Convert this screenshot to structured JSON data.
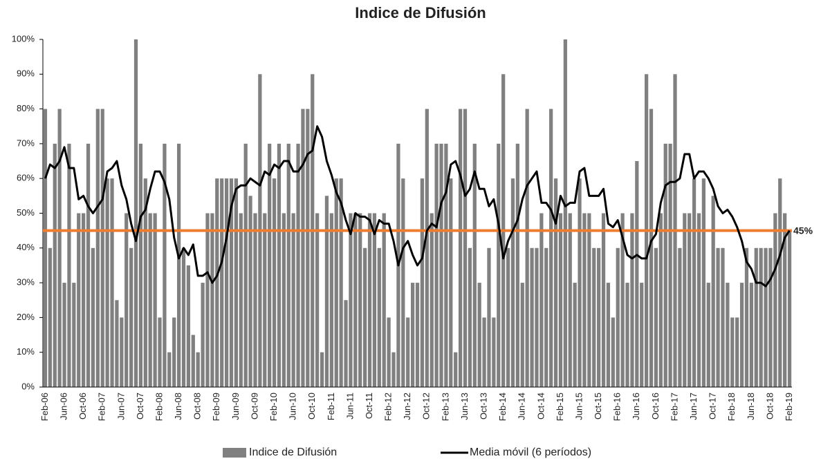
{
  "chart_data": {
    "type": "bar_line",
    "title": "Indice de Difusión",
    "categories": [
      "Feb-06",
      null,
      null,
      null,
      "Jun-06",
      null,
      null,
      null,
      "Oct-06",
      null,
      null,
      null,
      "Feb-07",
      null,
      null,
      null,
      "Jun-07",
      null,
      null,
      null,
      "Oct-07",
      null,
      null,
      null,
      "Feb-08",
      null,
      null,
      null,
      "Jun-08",
      null,
      null,
      null,
      "Oct-08",
      null,
      null,
      null,
      "Feb-09",
      null,
      null,
      null,
      "Jun-09",
      null,
      null,
      null,
      "Oct-09",
      null,
      null,
      null,
      "Feb-10",
      null,
      null,
      null,
      "Jun-10",
      null,
      null,
      null,
      "Oct-10",
      null,
      null,
      null,
      "Feb-11",
      null,
      null,
      null,
      "Jun-11",
      null,
      null,
      null,
      "Oct-11",
      null,
      null,
      null,
      "Feb-12",
      null,
      null,
      null,
      "Jun-12",
      null,
      null,
      null,
      "Oct-12",
      null,
      null,
      null,
      "Feb-13",
      null,
      null,
      null,
      "Jun-13",
      null,
      null,
      null,
      "Oct-13",
      null,
      null,
      null,
      "Feb-14",
      null,
      null,
      null,
      "Jun-14",
      null,
      null,
      null,
      "Oct-14",
      null,
      null,
      null,
      "Feb-15",
      null,
      null,
      null,
      "Jun-15",
      null,
      null,
      null,
      "Oct-15",
      null,
      null,
      null,
      "Feb-16",
      null,
      null,
      null,
      "Jun-16",
      null,
      null,
      null,
      "Oct-16",
      null,
      null,
      null,
      "Feb-17",
      null,
      null,
      null,
      "Jun-17",
      null,
      null,
      null,
      "Oct-17",
      null,
      null,
      null,
      "Feb-18",
      null,
      null,
      null,
      "Jun-18",
      null,
      null,
      null,
      "Oct-18",
      null,
      null,
      null,
      "Feb-19"
    ],
    "series": [
      {
        "name": "Indice de Difusión",
        "type": "bar",
        "color": "#808080",
        "values": [
          80,
          40,
          70,
          80,
          30,
          70,
          30,
          50,
          50,
          70,
          40,
          80,
          80,
          60,
          60,
          25,
          20,
          50,
          40,
          100,
          70,
          60,
          50,
          50,
          20,
          70,
          10,
          20,
          70,
          40,
          35,
          15,
          10,
          30,
          50,
          50,
          60,
          60,
          60,
          60,
          60,
          50,
          70,
          55,
          50,
          90,
          50,
          70,
          60,
          70,
          50,
          70,
          50,
          70,
          80,
          80,
          90,
          50,
          10,
          55,
          50,
          60,
          60,
          25,
          50,
          50,
          50,
          40,
          50,
          50,
          40,
          50,
          20,
          10,
          70,
          60,
          20,
          30,
          30,
          60,
          80,
          50,
          70,
          70,
          70,
          60,
          10,
          80,
          80,
          40,
          70,
          30,
          20,
          40,
          20,
          70,
          90,
          40,
          60,
          70,
          30,
          80,
          40,
          40,
          50,
          40,
          80,
          60,
          50,
          100,
          50,
          30,
          60,
          50,
          50,
          40,
          40,
          50,
          30,
          20,
          40,
          50,
          30,
          50,
          65,
          30,
          90,
          80,
          40,
          50,
          70,
          70,
          90,
          40,
          50,
          50,
          60,
          50,
          60,
          30,
          55,
          40,
          40,
          30,
          20,
          20,
          30,
          40,
          30,
          40,
          40,
          40,
          40,
          50,
          60,
          50,
          45
        ]
      },
      {
        "name": "Media móvil (6 períodos)",
        "type": "line",
        "color": "#000000",
        "values": [
          60,
          64,
          63,
          65,
          69,
          63,
          63,
          54,
          55,
          52,
          50,
          52,
          54,
          62,
          63,
          65,
          58,
          54,
          47,
          42,
          49,
          51,
          57,
          62,
          62,
          59,
          54,
          43,
          37,
          40,
          38,
          41,
          32,
          32,
          33,
          30,
          32,
          36,
          43,
          52,
          57,
          58,
          58,
          60,
          59,
          58,
          62,
          61,
          64,
          63,
          65,
          65,
          62,
          62,
          64,
          67,
          68,
          75,
          72,
          65,
          61,
          56,
          53,
          48,
          44,
          50,
          49,
          49,
          48,
          44,
          48,
          47,
          47,
          42,
          35,
          40,
          42,
          38,
          35,
          37,
          45,
          47,
          46,
          53,
          56,
          64,
          65,
          61,
          55,
          57,
          62,
          57,
          57,
          52,
          54,
          47,
          37,
          42,
          45,
          48,
          54,
          58,
          60,
          62,
          53,
          53,
          51,
          47,
          55,
          52,
          53,
          53,
          62,
          63,
          55,
          55,
          55,
          57,
          47,
          46,
          48,
          43,
          38,
          37,
          38,
          37,
          37,
          42,
          44,
          53,
          58,
          59,
          59,
          60,
          67,
          67,
          60,
          62,
          62,
          60,
          57,
          52,
          50,
          51,
          49,
          46,
          42,
          36,
          34,
          30,
          30,
          29,
          31,
          34,
          38,
          43,
          45
        ]
      }
    ],
    "reference_line": {
      "value": 45,
      "label": "45%",
      "color": "#ed7d31"
    },
    "ylim": [
      0,
      100
    ],
    "yticks": [
      {
        "value": 0,
        "label": "0%"
      },
      {
        "value": 10,
        "label": "10%"
      },
      {
        "value": 20,
        "label": "20%"
      },
      {
        "value": 30,
        "label": "30%"
      },
      {
        "value": 40,
        "label": "40%"
      },
      {
        "value": 50,
        "label": "50%"
      },
      {
        "value": 60,
        "label": "60%"
      },
      {
        "value": 70,
        "label": "70%"
      },
      {
        "value": 80,
        "label": "80%"
      },
      {
        "value": 90,
        "label": "90%"
      },
      {
        "value": 100,
        "label": "100%"
      }
    ],
    "legend": "bottom"
  }
}
